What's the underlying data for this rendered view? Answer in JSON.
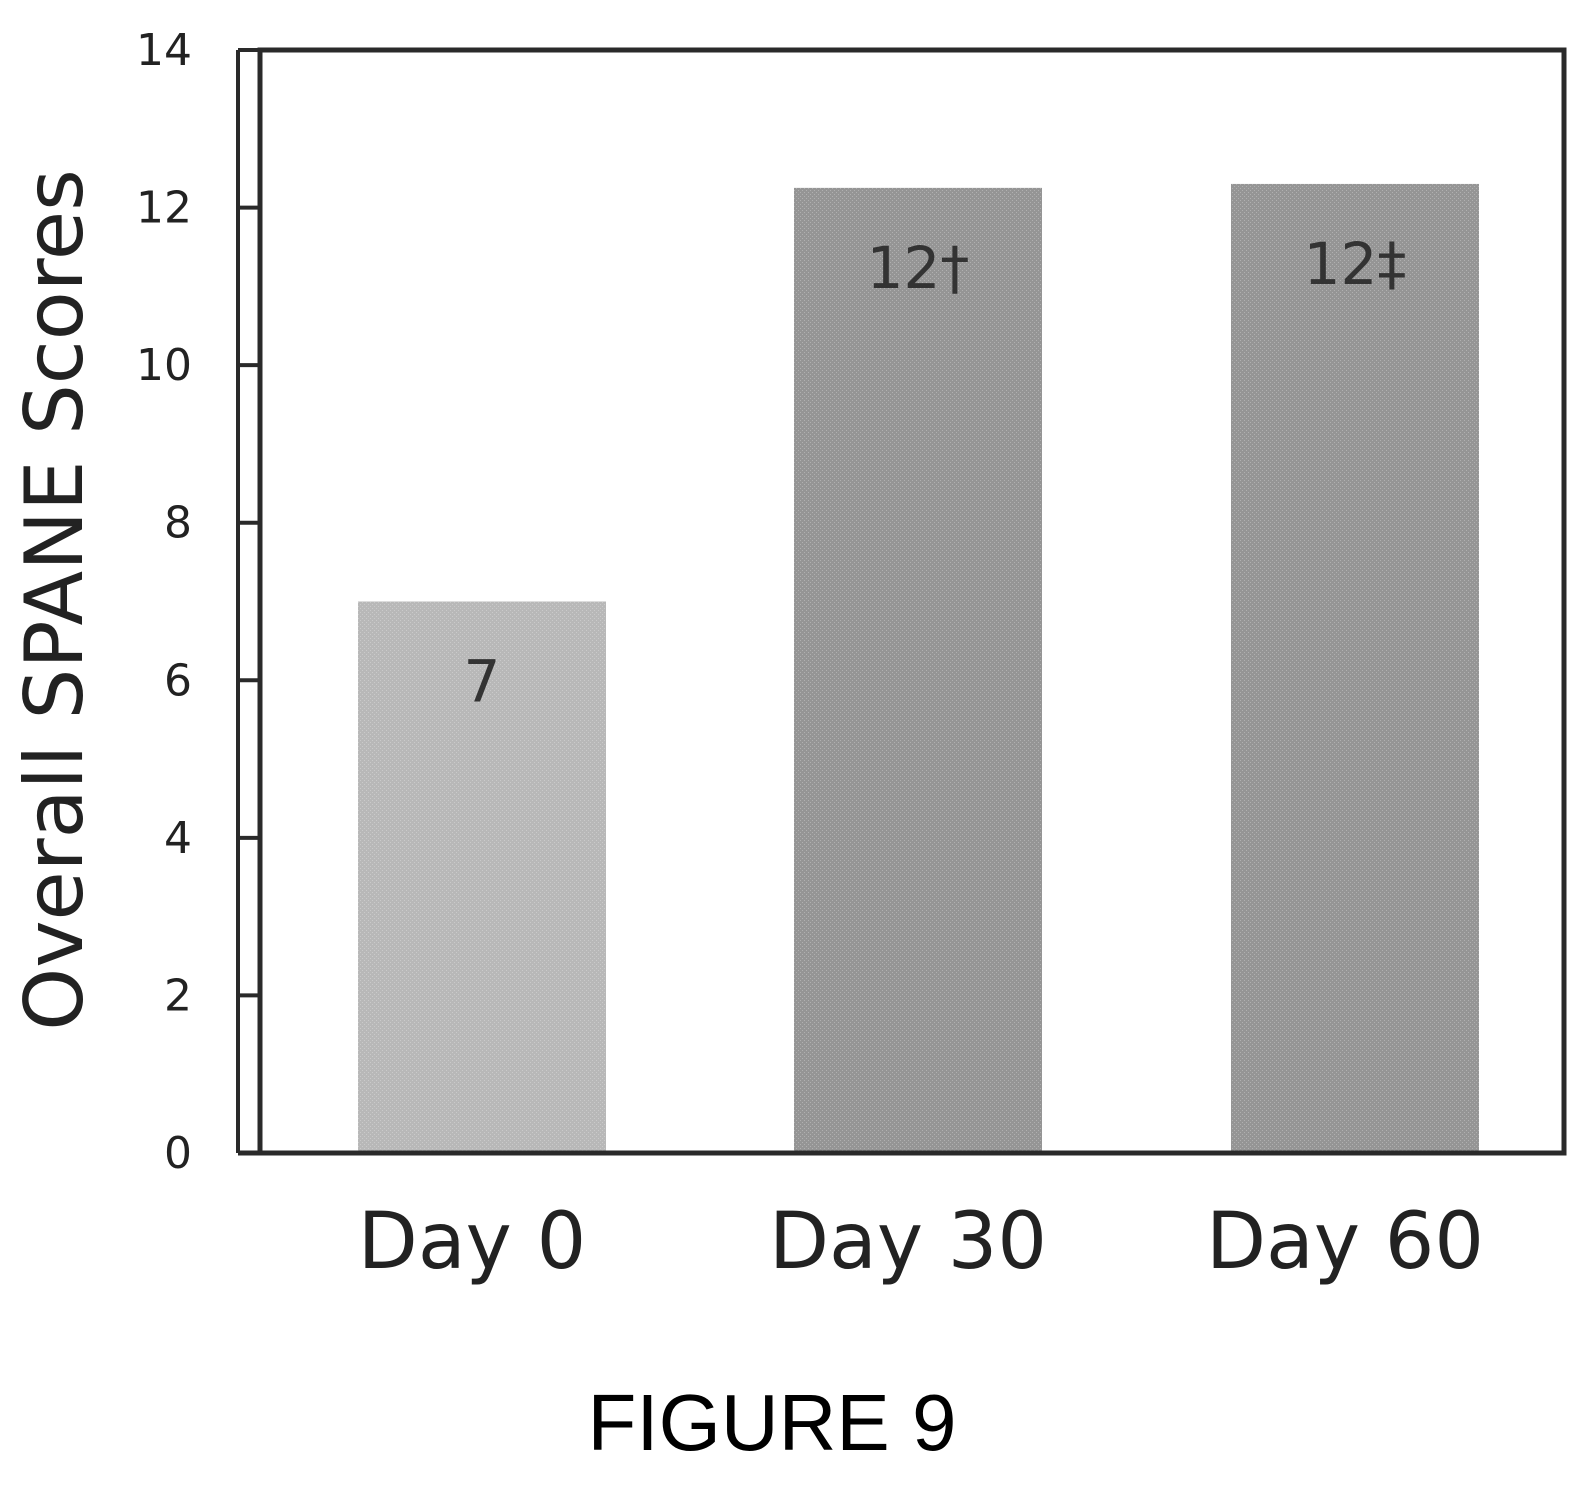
{
  "chart_data": {
    "type": "bar",
    "categories": [
      "Day 0",
      "Day 30",
      "Day 60"
    ],
    "values": [
      7,
      12.25,
      12.3
    ],
    "data_labels": [
      "7",
      "12†",
      "12‡"
    ],
    "ylabel": "Overall SPANE Scores",
    "xlabel": "",
    "ylim": [
      0,
      14
    ],
    "yticks": [
      "0",
      "2",
      "4",
      "6",
      "8",
      "10",
      "12",
      "14"
    ],
    "grid": false,
    "legend": "none",
    "bar_colors": [
      "#b8b8b8",
      "#959595",
      "#959595"
    ],
    "caption": "FIGURE 9"
  }
}
